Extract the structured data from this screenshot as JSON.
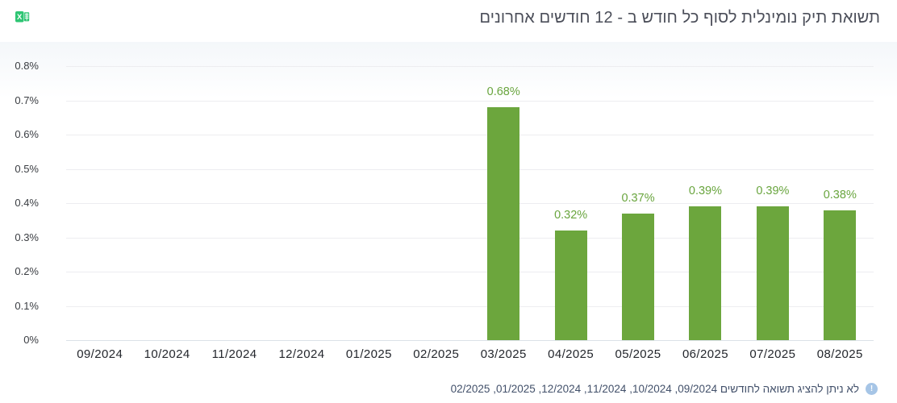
{
  "header": {
    "title": "תשואת תיק נומינלית לסוף כל חודש ב - 12 חודשים אחרונים",
    "excel_icon": "excel-export-icon"
  },
  "chart_data": {
    "type": "bar",
    "title": "תשואת תיק נומינלית לסוף כל חודש ב - 12 חודשים אחרונים",
    "categories": [
      "09/2024",
      "10/2024",
      "11/2024",
      "12/2024",
      "01/2025",
      "02/2025",
      "03/2025",
      "04/2025",
      "05/2025",
      "06/2025",
      "07/2025",
      "08/2025"
    ],
    "values": [
      null,
      null,
      null,
      null,
      null,
      null,
      0.68,
      0.32,
      0.37,
      0.39,
      0.39,
      0.38
    ],
    "value_labels": [
      "",
      "",
      "",
      "",
      "",
      "",
      "0.68%",
      "0.32%",
      "0.37%",
      "0.39%",
      "0.39%",
      "0.38%"
    ],
    "y_ticks": [
      "0.8%",
      "0.7%",
      "0.6%",
      "0.5%",
      "0.4%",
      "0.3%",
      "0.2%",
      "0.1%",
      "0%"
    ],
    "ylim": [
      0,
      0.8
    ],
    "xlabel": "",
    "ylabel": "",
    "grid": true,
    "legend": false,
    "bar_color": "#6ca63d",
    "value_label_color": "#69a53e"
  },
  "footer": {
    "note": "לא ניתן להציג תשואה לחודשים 09/2024, 10/2024, 11/2024, 12/2024, 01/2025, 02/2025",
    "info_icon_glyph": "!",
    "info_icon_color": "#a6c5e6"
  },
  "colors": {
    "background": "#ffffff",
    "gridline": "#ededf0",
    "axis_line": "#dbe1e8",
    "title_text": "#4b4e59",
    "x_tick_text": "#24272d",
    "y_tick_text": "#3a3d42",
    "footer_text": "#42506a",
    "excel_green": "#2ec573"
  }
}
